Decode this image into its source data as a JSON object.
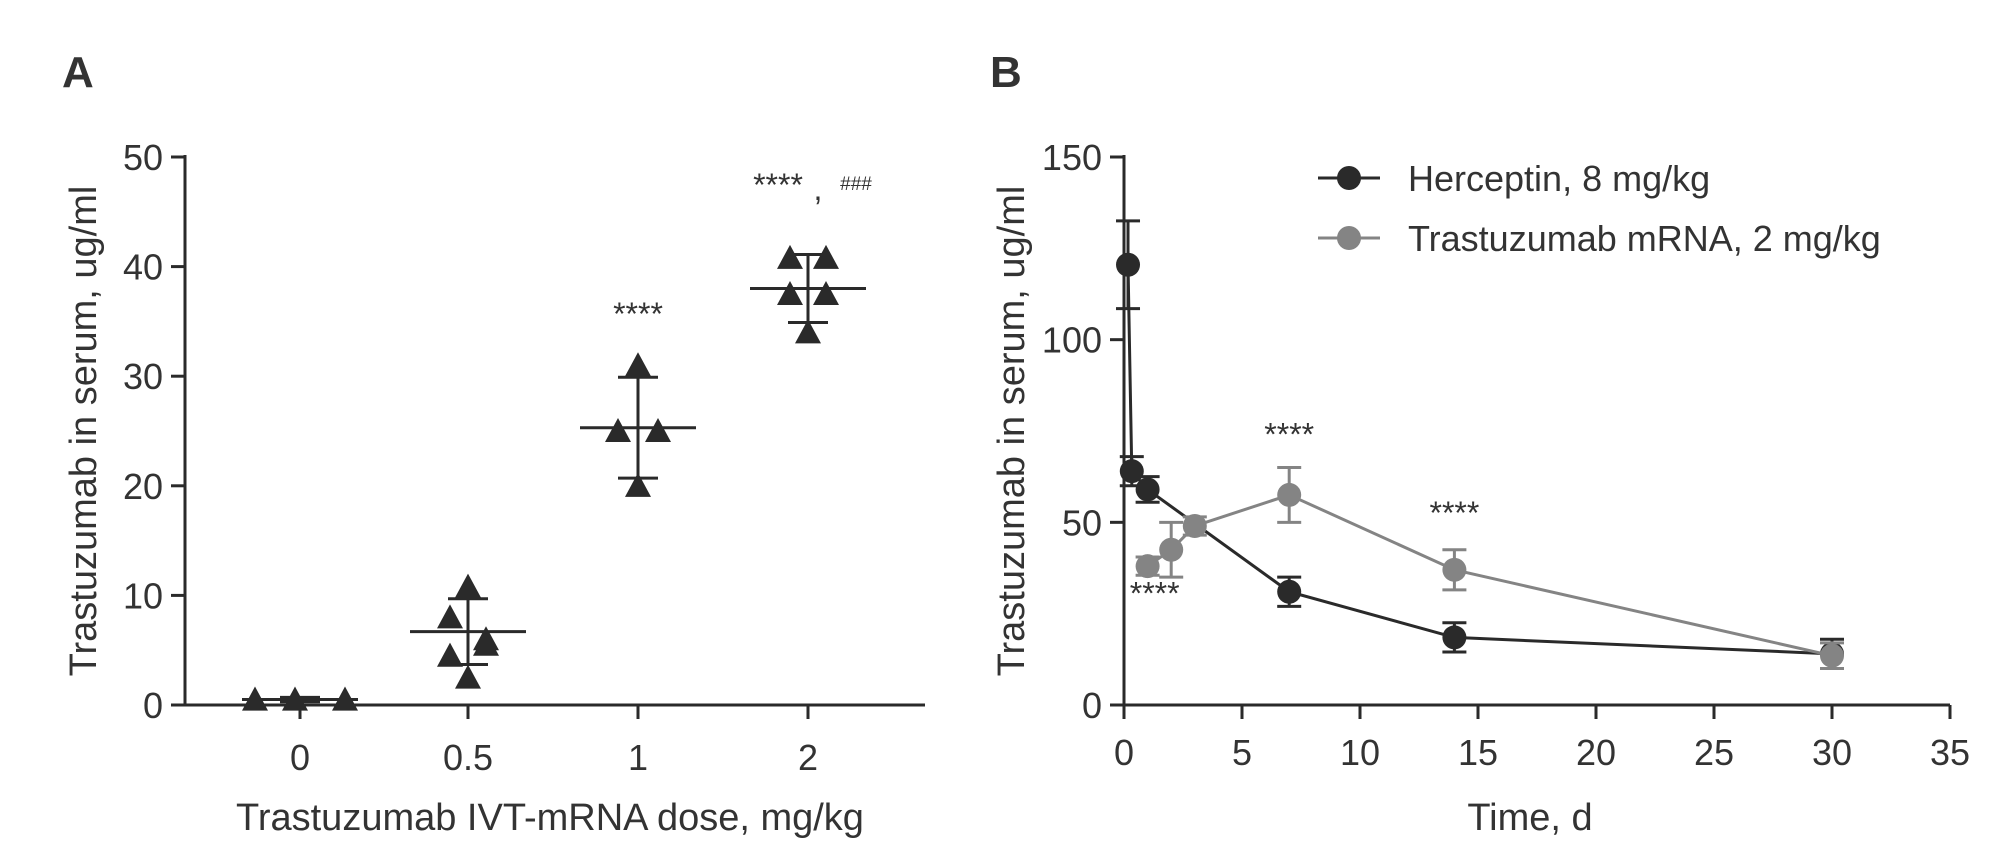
{
  "panels": {
    "a": {
      "letter": "A"
    },
    "b": {
      "letter": "B"
    }
  },
  "chart_data": [
    {
      "id": "A",
      "type": "scatter",
      "xlabel": "Trastuzumab IVT-mRNA dose, mg/kg",
      "ylabel": "Trastuzumab in serum, ug/ml",
      "categories": [
        "0",
        "0.5",
        "1",
        "2"
      ],
      "ylim": [
        0,
        50
      ],
      "yticks": [
        0,
        10,
        20,
        30,
        40,
        50
      ],
      "points": [
        [
          -0.13,
          0.0,
          0.13,
          0.0,
          0.13
        ],
        [
          4.5,
          6.0,
          8.0,
          10.8,
          2.5,
          5.5
        ],
        [
          25.0,
          31.0,
          20.0,
          25.0
        ],
        [
          40.8,
          40.8,
          37.5,
          37.5,
          34.0
        ]
      ],
      "points_values": [
        [
          0.5,
          0.5,
          0.5
        ],
        [
          4.5,
          6.0,
          8.0,
          10.8,
          2.5,
          5.5
        ],
        [
          25.0,
          31.0,
          20.0,
          25.0
        ],
        [
          40.8,
          40.8,
          37.5,
          37.5,
          34.0
        ]
      ],
      "mean": [
        0.5,
        6.7,
        25.3,
        38.0
      ],
      "sd": [
        0.2,
        3.0,
        4.6,
        3.1
      ],
      "annotations": [
        {
          "category": "1",
          "text": "****"
        },
        {
          "category": "2",
          "text": "****",
          "suffix": ",",
          "extra": "###"
        }
      ]
    },
    {
      "id": "B",
      "type": "line",
      "xlabel": "Time, d",
      "ylabel": "Trastuzumab in serum, ug/ml",
      "xlim": [
        0,
        35
      ],
      "ylim": [
        0,
        150
      ],
      "xticks": [
        0,
        5,
        10,
        15,
        20,
        25,
        30,
        35
      ],
      "yticks": [
        0,
        50,
        100,
        150
      ],
      "legend": "top-right",
      "series": [
        {
          "name": "Herceptin, 8 mg/kg",
          "color": "#2a2a2a",
          "x": [
            0.17,
            0.33,
            1,
            7,
            14,
            30
          ],
          "y": [
            120.5,
            64,
            59,
            31,
            18.5,
            14
          ],
          "err": [
            12,
            4,
            3.5,
            4,
            4,
            4
          ]
        },
        {
          "name": "Trastuzumab mRNA, 2 mg/kg",
          "color": "#848484",
          "x": [
            1,
            2,
            3,
            7,
            14,
            30
          ],
          "y": [
            38,
            42.5,
            49,
            57.5,
            37,
            13.5
          ],
          "err": [
            2.5,
            7.5,
            2.5,
            7.5,
            5.5,
            3.5
          ]
        }
      ],
      "annotations": [
        {
          "text": "****",
          "x": 7,
          "y": 71
        },
        {
          "text": "****",
          "x": 14,
          "y": 49.5
        },
        {
          "text": "****",
          "x": 1.3,
          "y": 27.5
        }
      ]
    }
  ]
}
